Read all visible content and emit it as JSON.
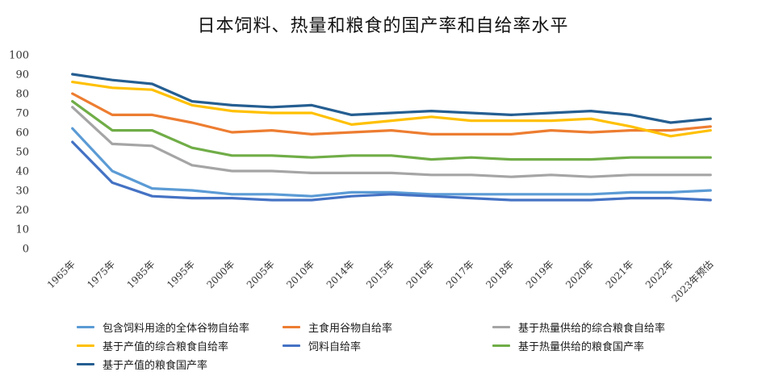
{
  "chart_data": {
    "type": "line",
    "title": "日本饲料、热量和粮食的国产率和自给率水平",
    "xlabel": "",
    "ylabel": "",
    "ylim": [
      0,
      100
    ],
    "yticks": [
      0,
      10,
      20,
      30,
      40,
      50,
      60,
      70,
      80,
      90,
      100
    ],
    "grid": false,
    "legend": "bottom",
    "categories": [
      "1965年",
      "1975年",
      "1985年",
      "1995年",
      "2000年",
      "2005年",
      "2010年",
      "2014年",
      "2015年",
      "2016年",
      "2017年",
      "2018年",
      "2019年",
      "2020年",
      "2021年",
      "2022年",
      "2023年预估"
    ],
    "series": [
      {
        "name": "包含饲料用途的全体谷物自给率",
        "color": "#5b9bd5",
        "values": [
          62,
          40,
          31,
          30,
          28,
          28,
          27,
          29,
          29,
          28,
          28,
          28,
          28,
          28,
          29,
          29,
          30
        ]
      },
      {
        "name": "主食用谷物自给率",
        "color": "#ed7d31",
        "values": [
          80,
          69,
          69,
          65,
          60,
          61,
          59,
          60,
          61,
          59,
          59,
          59,
          61,
          60,
          61,
          61,
          63
        ]
      },
      {
        "name": "基于热量供给的综合粮食自给率",
        "color": "#a5a5a5",
        "values": [
          73,
          54,
          53,
          43,
          40,
          40,
          39,
          39,
          39,
          38,
          38,
          37,
          38,
          37,
          38,
          38,
          38
        ]
      },
      {
        "name": "基于产值的综合粮食自给率",
        "color": "#ffc000",
        "values": [
          86,
          83,
          82,
          74,
          71,
          70,
          70,
          64,
          66,
          68,
          66,
          66,
          66,
          67,
          63,
          58,
          61
        ]
      },
      {
        "name": "饲料自给率",
        "color": "#4472c4",
        "values": [
          55,
          34,
          27,
          26,
          26,
          25,
          25,
          27,
          28,
          27,
          26,
          25,
          25,
          25,
          26,
          26,
          25
        ]
      },
      {
        "name": "基于热量供给的粮食国产率",
        "color": "#70ad47",
        "values": [
          76,
          61,
          61,
          52,
          48,
          48,
          47,
          48,
          48,
          46,
          47,
          46,
          46,
          46,
          47,
          47,
          47
        ]
      },
      {
        "name": "基于产值的粮食国产率",
        "color": "#255e91",
        "values": [
          90,
          87,
          85,
          76,
          74,
          73,
          74,
          69,
          70,
          71,
          70,
          69,
          70,
          71,
          69,
          65,
          67
        ]
      }
    ]
  }
}
